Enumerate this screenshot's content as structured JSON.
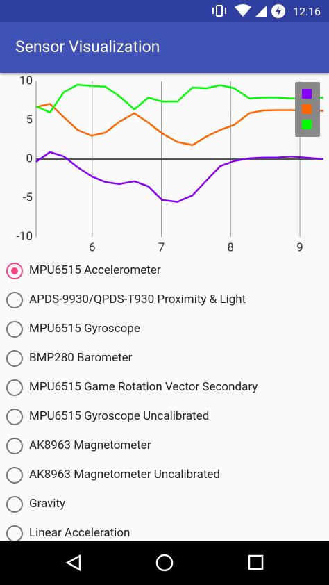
{
  "status_bar": {
    "time": "12:16"
  },
  "app_bar": {
    "title": "Sensor Visualization"
  },
  "chart_data": {
    "type": "line",
    "x": [
      5.19,
      5.39,
      5.59,
      5.79,
      5.99,
      6.19,
      6.39,
      6.61,
      6.81,
      7.01,
      7.23,
      7.45,
      7.65,
      7.85,
      8.05,
      8.27,
      8.47,
      8.67,
      8.87,
      9.07,
      9.34
    ],
    "series": [
      {
        "color": "#8800ff",
        "values": [
          -0.35,
          0.9,
          0.35,
          -1.05,
          -2.2,
          -2.95,
          -3.2,
          -2.85,
          -3.5,
          -5.25,
          -5.5,
          -4.65,
          -2.75,
          -0.9,
          -0.25,
          0.1,
          0.2,
          0.2,
          0.35,
          0.2,
          0
        ]
      },
      {
        "color": "#ff6600",
        "values": [
          6.7,
          7.1,
          5.4,
          3.75,
          3.0,
          3.4,
          4.8,
          5.9,
          4.7,
          3.3,
          2.2,
          1.8,
          2.9,
          3.75,
          4.4,
          5.9,
          6.25,
          6.3,
          6.3,
          6.2,
          6.2
        ]
      },
      {
        "color": "#00ff00",
        "values": [
          6.8,
          6.0,
          8.6,
          9.55,
          9.4,
          9.3,
          8.1,
          6.4,
          7.9,
          7.4,
          7.4,
          9.2,
          9.1,
          9.5,
          9.1,
          7.8,
          7.9,
          7.9,
          7.8,
          7.8,
          7.9
        ]
      }
    ],
    "xlim": [
      5.19,
      9.34
    ],
    "ylim": [
      -10,
      10
    ],
    "xticks": [
      6,
      7,
      8,
      9
    ],
    "yticks": [
      -10,
      -5,
      0,
      5,
      10
    ],
    "grid": true,
    "legend": "top-right"
  },
  "sensor_list": {
    "items": [
      {
        "label": "MPU6515 Accelerometer",
        "checked": true
      },
      {
        "label": "APDS-9930/QPDS-T930 Proximity & Light",
        "checked": false
      },
      {
        "label": "MPU6515 Gyroscope",
        "checked": false
      },
      {
        "label": "BMP280 Barometer",
        "checked": false
      },
      {
        "label": "MPU6515 Game Rotation Vector Secondary",
        "checked": false
      },
      {
        "label": "MPU6515 Gyroscope Uncalibrated",
        "checked": false
      },
      {
        "label": "AK8963 Magnetometer",
        "checked": false
      },
      {
        "label": "AK8963 Magnetometer Uncalibrated",
        "checked": false
      },
      {
        "label": "Gravity",
        "checked": false
      },
      {
        "label": "Linear Acceleration",
        "checked": false
      }
    ]
  }
}
